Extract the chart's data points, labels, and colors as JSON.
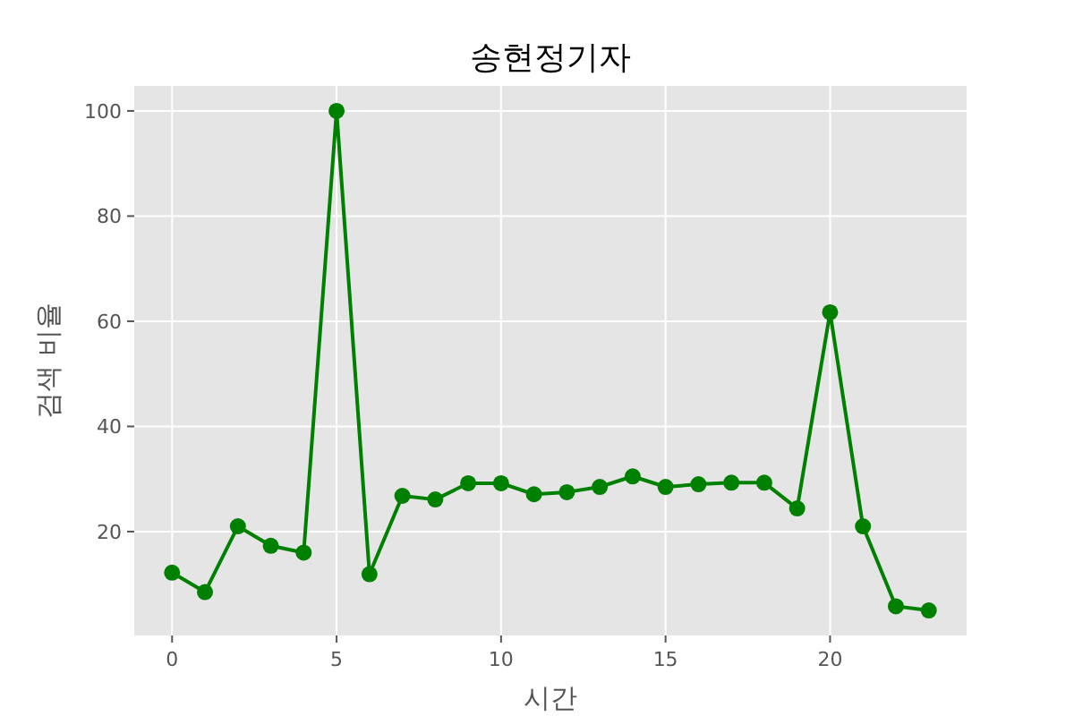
{
  "chart_data": {
    "type": "line",
    "title": "송현정기자",
    "xlabel": "시간",
    "ylabel": "검색 비율",
    "x": [
      0,
      1,
      2,
      3,
      4,
      5,
      6,
      7,
      8,
      9,
      10,
      11,
      12,
      13,
      14,
      15,
      16,
      17,
      18,
      19,
      20,
      21,
      22,
      23
    ],
    "series": [
      {
        "color": "#008000",
        "values": [
          12.2,
          8.5,
          21,
          17.3,
          16,
          100,
          11.9,
          26.8,
          26.1,
          29.2,
          29.2,
          27.1,
          27.5,
          28.5,
          30.5,
          28.5,
          29,
          29.3,
          29.3,
          24.4,
          61.7,
          21,
          5.8,
          5
        ]
      }
    ],
    "xlim": [
      -1.15,
      24.15
    ],
    "ylim": [
      0.25,
      104.75
    ],
    "xticks": [
      0,
      5,
      10,
      15,
      20
    ],
    "yticks": [
      20,
      40,
      60,
      80,
      100
    ],
    "grid": true,
    "marker": "circle",
    "line_style": "solid"
  }
}
